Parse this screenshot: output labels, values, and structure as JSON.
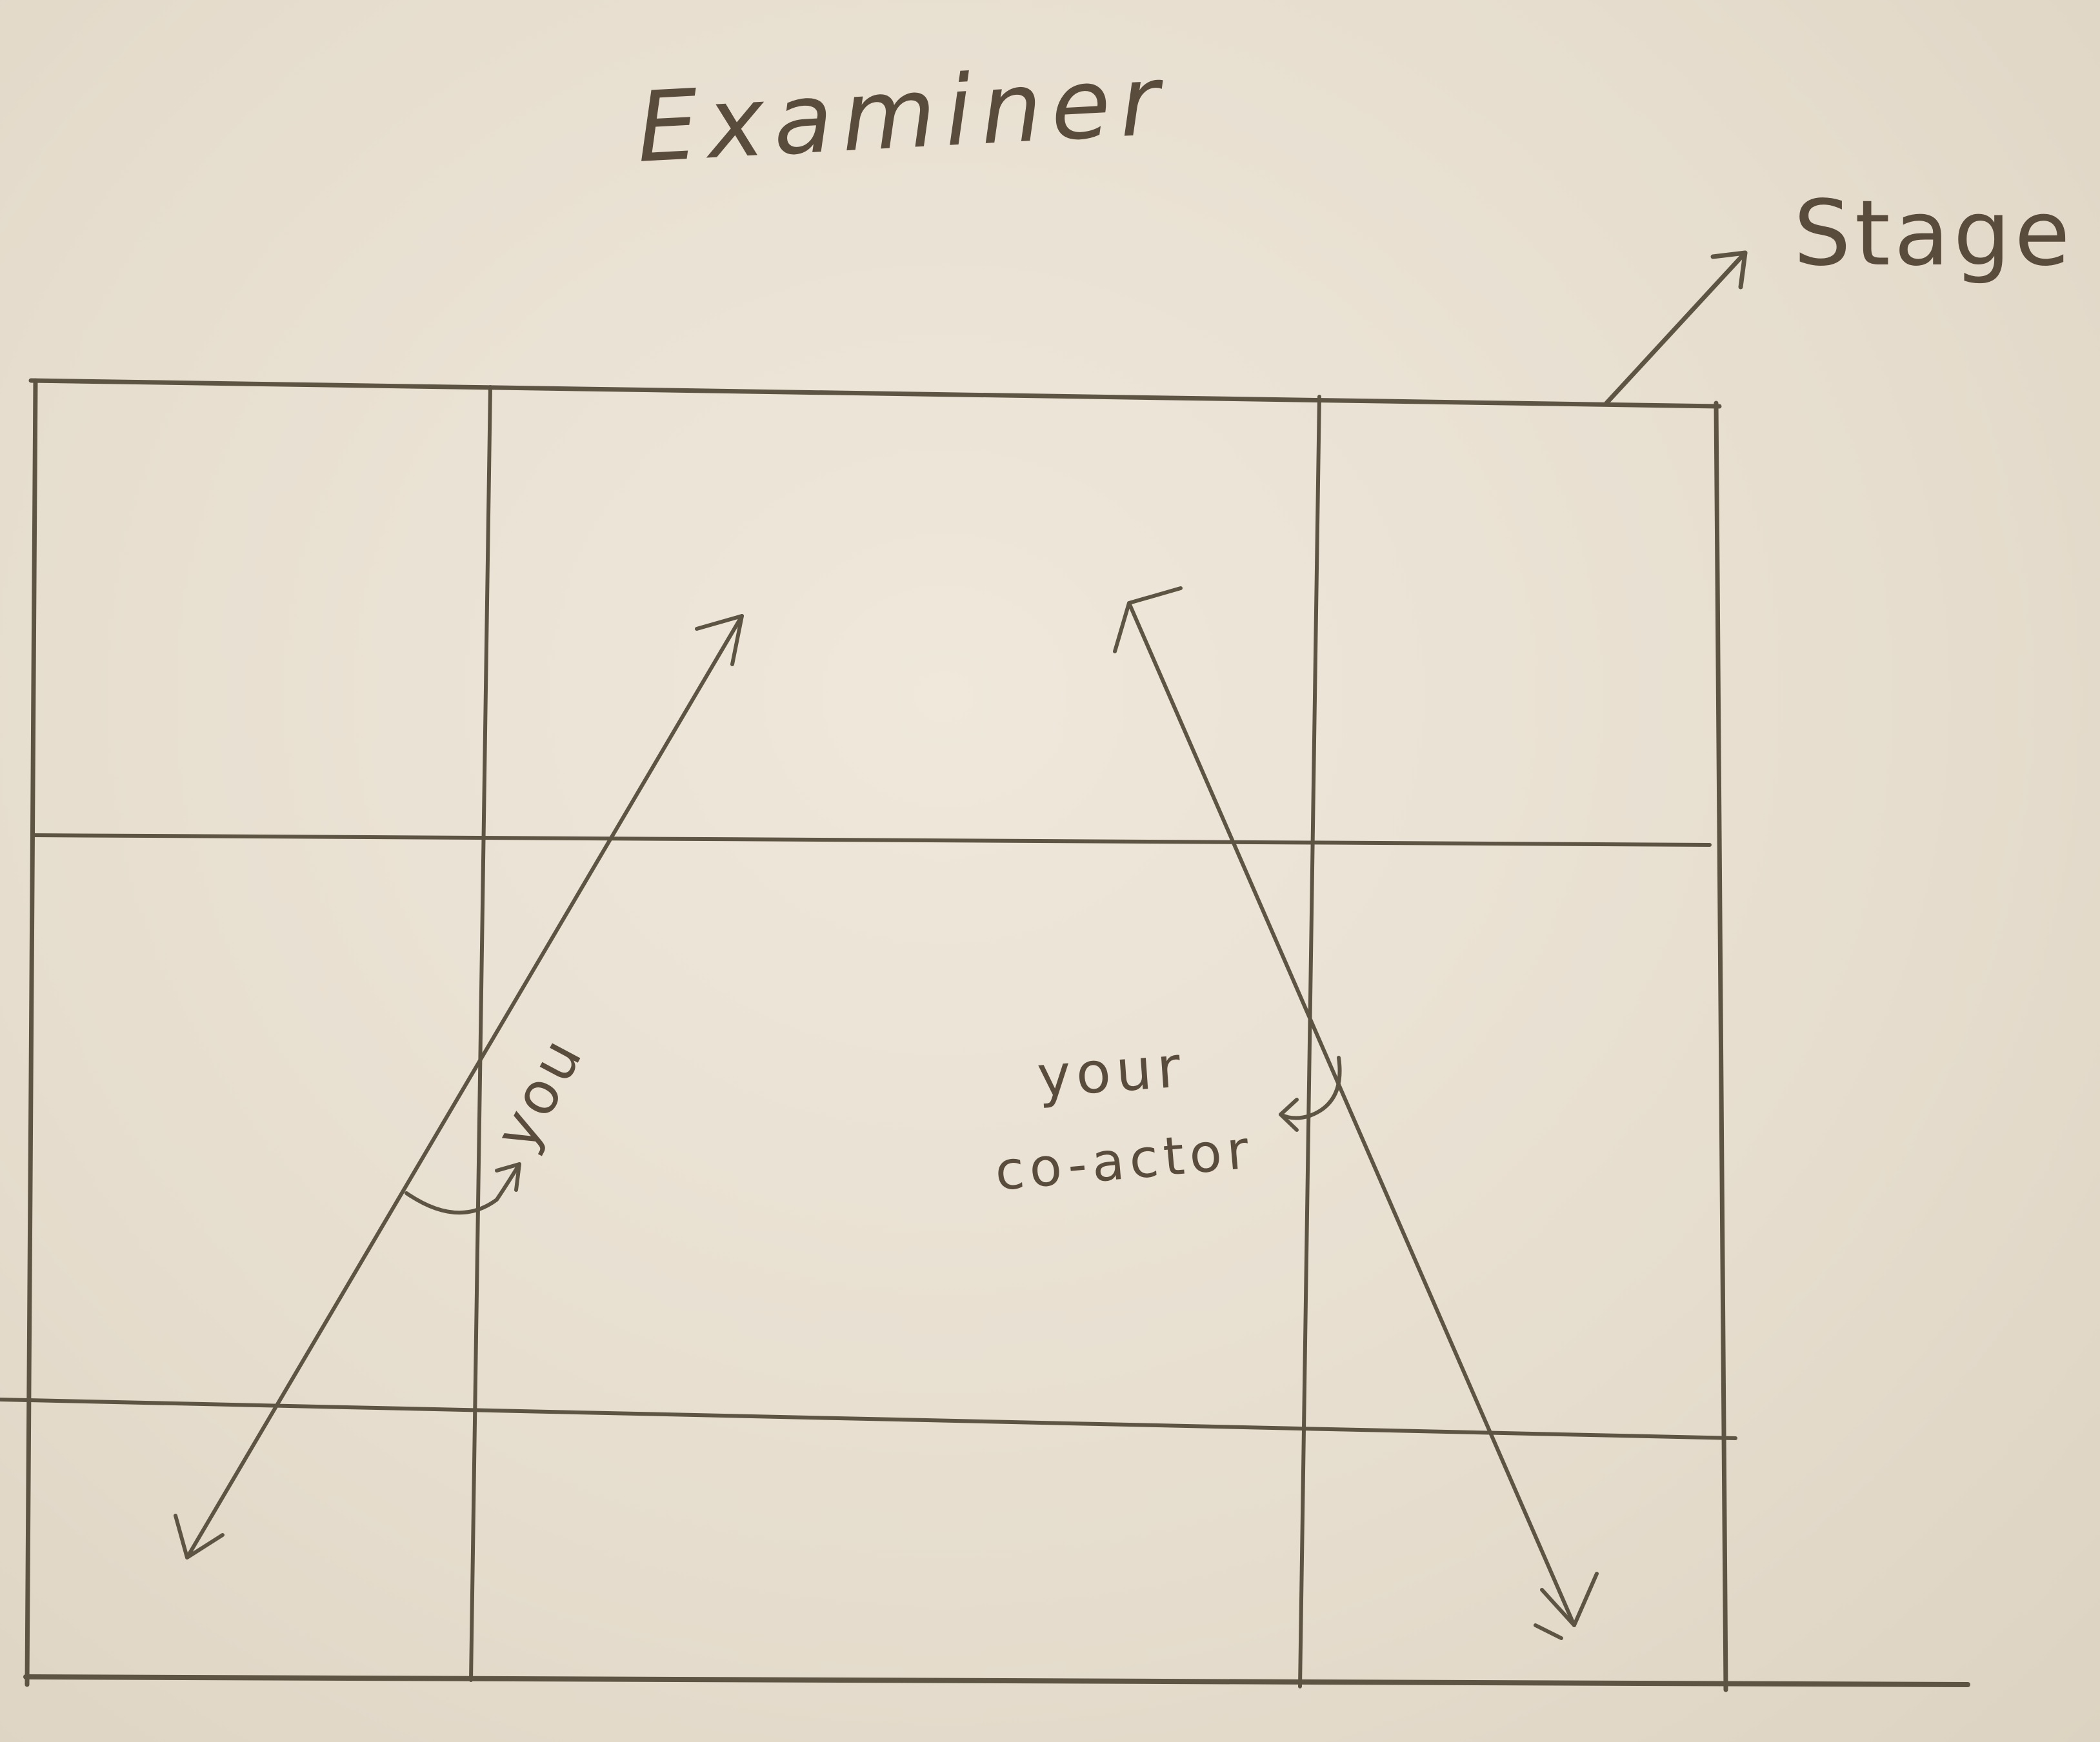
{
  "diagram": {
    "title": "Examiner",
    "stage_label": "Stage",
    "actor_label": "you",
    "coactor_label_line1": "your",
    "coactor_label_line2": "co-actor"
  },
  "colors": {
    "paper": "#e8e0d1",
    "pencil": "#5e5444",
    "text": "#5a4c3c"
  }
}
